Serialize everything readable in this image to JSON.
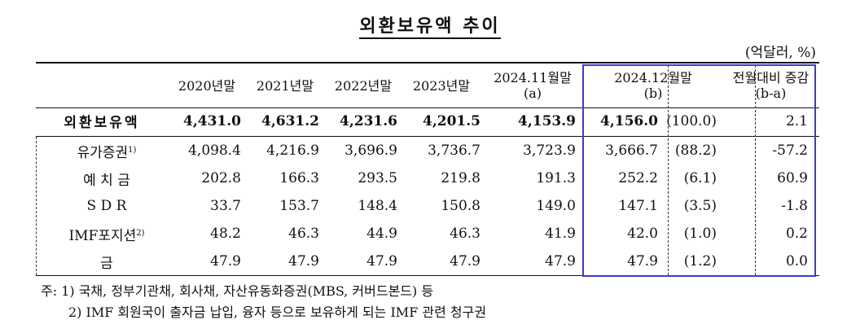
{
  "title": "외환보유액 추이",
  "unit": "(억달러, %)",
  "columns": {
    "c2020": "2020년말",
    "c2021": "2021년말",
    "c2022": "2022년말",
    "c2023": "2023년말",
    "c2411_line1": "2024.11월말",
    "c2411_line2": "(a)",
    "c2412_line1": "2024.12월말",
    "c2412_line2": "(b)",
    "diff_line1": "전월대비 증감",
    "diff_line2": "(b-a)"
  },
  "total": {
    "label": "외환보유액",
    "values": [
      "4,431.0",
      "4,631.2",
      "4,231.6",
      "4,201.5",
      "4,153.9",
      "4,156.0",
      "(100.0)",
      "2.1"
    ]
  },
  "rows": [
    {
      "label": "유가증권",
      "sup": "1)",
      "values": [
        "4,098.4",
        "4,216.9",
        "3,696.9",
        "3,736.7",
        "3,723.9",
        "3,666.7",
        "(88.2)",
        "-57.2"
      ]
    },
    {
      "label": "예 치 금",
      "sup": "",
      "values": [
        "202.8",
        "166.3",
        "293.5",
        "219.8",
        "191.3",
        "252.2",
        "(6.1)",
        "60.9"
      ]
    },
    {
      "label": "S D R",
      "sup": "",
      "values": [
        "33.7",
        "153.7",
        "148.4",
        "150.8",
        "149.0",
        "147.1",
        "(3.5)",
        "-1.8"
      ]
    },
    {
      "label": "IMF포지션",
      "sup": "2)",
      "values": [
        "48.2",
        "46.3",
        "44.9",
        "46.3",
        "41.9",
        "42.0",
        "(1.0)",
        "0.2"
      ]
    },
    {
      "label": "금",
      "sup": "",
      "values": [
        "47.9",
        "47.9",
        "47.9",
        "47.9",
        "47.9",
        "47.9",
        "(1.2)",
        "0.0"
      ]
    }
  ],
  "notes": {
    "line1": "주: 1) 국채, 정부기관채, 회사채, 자산유동화증권(MBS, 커버드본드) 등",
    "line2": "2) IMF 회원국이 출자금 납입, 융자 등으로 보유하게 되는 IMF 관련 청구권"
  },
  "colors": {
    "highlight_box": "#3c3cc9"
  }
}
